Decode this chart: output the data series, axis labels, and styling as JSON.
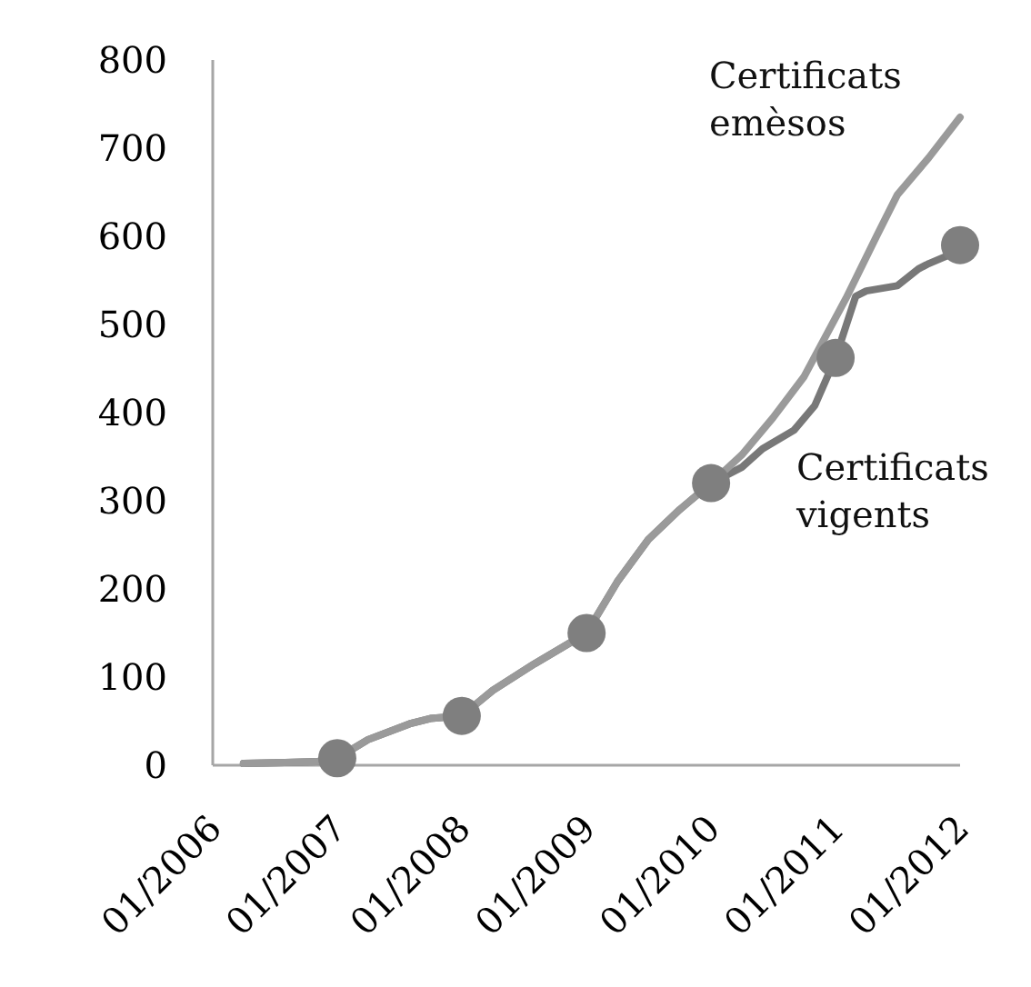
{
  "chart_data": {
    "type": "line",
    "xlim": [
      "2006-01",
      "2012-01"
    ],
    "xticks": [
      {
        "value": "2006-01",
        "label": "01/2006"
      },
      {
        "value": "2007-01",
        "label": "01/2007"
      },
      {
        "value": "2008-01",
        "label": "01/2008"
      },
      {
        "value": "2009-01",
        "label": "01/2009"
      },
      {
        "value": "2010-01",
        "label": "01/2010"
      },
      {
        "value": "2011-01",
        "label": "01/2011"
      },
      {
        "value": "2012-01",
        "label": "01/2012"
      }
    ],
    "ylim": [
      0,
      800
    ],
    "yticks": [
      0,
      100,
      200,
      300,
      400,
      500,
      600,
      700,
      800
    ],
    "series": [
      {
        "name": "Certificats vigents",
        "color": "#787878",
        "x": [
          "2006-04",
          "2006-08",
          "2006-11",
          "2007-01",
          "2007-04",
          "2007-08",
          "2007-10",
          "2008-01",
          "2008-04",
          "2008-08",
          "2009-01",
          "2009-04",
          "2009-07",
          "2009-10",
          "2010-01",
          "2010-04",
          "2010-06",
          "2010-09",
          "2010-11",
          "2011-01",
          "2011-03",
          "2011-04",
          "2011-07",
          "2011-09",
          "2011-10",
          "2011-12",
          "2012-01"
        ],
        "values": [
          2,
          3,
          4,
          8,
          29,
          47,
          53,
          56,
          85,
          115,
          150,
          208,
          256,
          290,
          320,
          338,
          359,
          380,
          408,
          462,
          532,
          538,
          544,
          563,
          569,
          579,
          590
        ]
      },
      {
        "name": "Certificats emèsos",
        "color": "#9a9a9a",
        "x": [
          "2006-04",
          "2006-08",
          "2006-11",
          "2007-01",
          "2007-04",
          "2007-08",
          "2007-10",
          "2008-01",
          "2008-04",
          "2008-08",
          "2009-01",
          "2009-04",
          "2009-07",
          "2009-10",
          "2010-01",
          "2010-04",
          "2010-07",
          "2010-10",
          "2011-02",
          "2011-05",
          "2011-07",
          "2011-10",
          "2012-01"
        ],
        "values": [
          2,
          3,
          4,
          8,
          29,
          47,
          53,
          56,
          85,
          115,
          150,
          208,
          256,
          290,
          320,
          352,
          394,
          441,
          530,
          600,
          647,
          689,
          735
        ]
      },
      {
        "type": "scatter",
        "color": "#7f7f7f",
        "marker": "circle",
        "x": [
          "2007-01",
          "2008-01",
          "2009-01",
          "2010-01",
          "2011-01",
          "2012-01"
        ],
        "values": [
          8,
          56,
          150,
          320,
          462,
          590
        ]
      }
    ]
  }
}
